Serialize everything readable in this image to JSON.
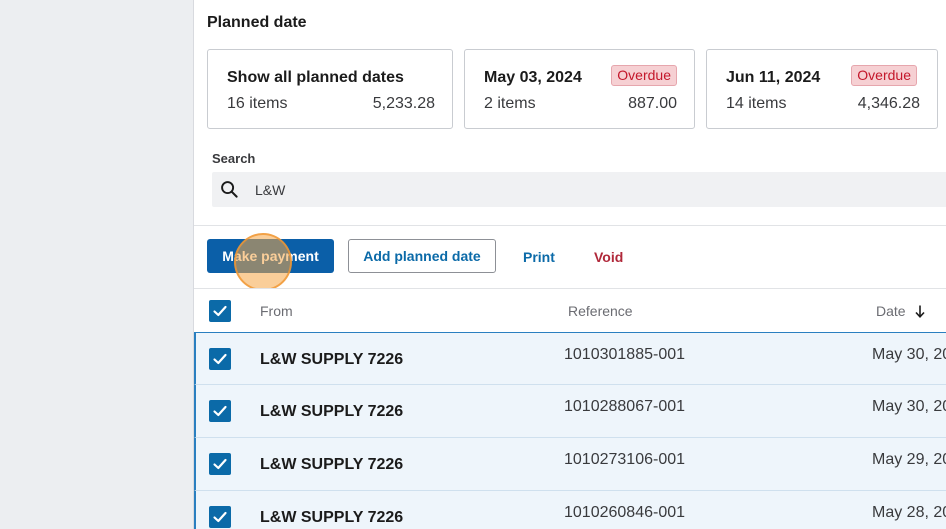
{
  "planned_date": {
    "title": "Planned date",
    "cards": [
      {
        "title": "Show all planned dates",
        "count": "16 items",
        "amount": "5,233.28",
        "badge": ""
      },
      {
        "title": "May 03, 2024",
        "count": "2 items",
        "amount": "887.00",
        "badge": "Overdue"
      },
      {
        "title": "Jun 11, 2024",
        "count": "14 items",
        "amount": "4,346.28",
        "badge": "Overdue"
      }
    ]
  },
  "search": {
    "label": "Search",
    "value": "L&W"
  },
  "actions": {
    "make_payment": "Make payment",
    "add_planned_date": "Add planned date",
    "print": "Print",
    "void": "Void"
  },
  "table": {
    "headers": {
      "from": "From",
      "reference": "Reference",
      "date": "Date"
    },
    "rows": [
      {
        "from": "L&W SUPPLY 7226",
        "reference": "1010301885-001",
        "date": "May 30, 20"
      },
      {
        "from": "L&W SUPPLY 7226",
        "reference": "1010288067-001",
        "date": "May 30, 20"
      },
      {
        "from": "L&W SUPPLY 7226",
        "reference": "1010273106-001",
        "date": "May 29, 20"
      },
      {
        "from": "L&W SUPPLY 7226",
        "reference": "1010260846-001",
        "date": "May 28, 20"
      }
    ]
  },
  "colors": {
    "primary": "#0b5fa8",
    "link": "#0b6aa8",
    "danger": "#b0283a",
    "badge_bg": "#f6d0d3"
  },
  "icons": {
    "search": "search-icon",
    "sort": "arrow-down-icon",
    "check": "checkmark-icon"
  }
}
